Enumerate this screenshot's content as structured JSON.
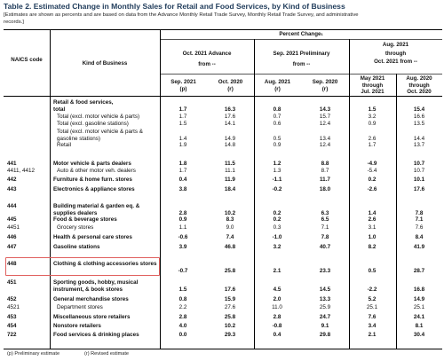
{
  "title": "Table 2.  Estimated Change in Monthly Sales for Retail and Food Services, by Kind of Business",
  "subtitle": "[Estimates are shown as percents and are based on data from the Advance Monthly Retail Trade Survey,  Monthly Retail Trade Survey, and administrative records.]",
  "header": {
    "naics": "NAICS code",
    "kind": "Kind of Business",
    "percent_change": "Percent Change",
    "percent_change_sup": "1",
    "group1": "Oct. 2021 Advance",
    "group1_from": "from --",
    "group2": "Sep. 2021 Preliminary",
    "group2_from": "from --",
    "group3_a": "Aug. 2021",
    "group3_b": "through",
    "group3_c": "Oct. 2021 from --",
    "cols": [
      {
        "l1": "Sep. 2021",
        "l2": "(p)"
      },
      {
        "l1": "Oct. 2020",
        "l2": "(r)"
      },
      {
        "l1": "Aug. 2021",
        "l2": "(r)"
      },
      {
        "l1": "Sep. 2020",
        "l2": "(r)"
      },
      {
        "l1": "May 2021",
        "l2": "through",
        "l3": "Jul. 2021"
      },
      {
        "l1": "Aug. 2020",
        "l2": "through",
        "l3": "Oct. 2020"
      }
    ]
  },
  "rows": [
    {
      "code": "",
      "kind": "Retail & food services,",
      "vals": [
        "",
        "",
        "",
        "",
        "",
        ""
      ]
    },
    {
      "code": "",
      "kind": "total",
      "vals": [
        "1.7",
        "16.3",
        "0.8",
        "14.3",
        "1.5",
        "15.4"
      ]
    },
    {
      "code": "",
      "kind": "Total (excl. motor vehicle & parts)",
      "vals": [
        "1.7",
        "17.6",
        "0.7",
        "15.7",
        "3.2",
        "16.6"
      ]
    },
    {
      "code": "",
      "kind": "Total (excl. gasoline stations)",
      "vals": [
        "1.5",
        "14.1",
        "0.6",
        "12.4",
        "0.9",
        "13.5"
      ]
    },
    {
      "code": "",
      "kind": "Total (excl. motor vehicle & parts & gasoline stations)",
      "vals": [
        "1.4",
        "14.9",
        "0.5",
        "13.4",
        "2.6",
        "14.4"
      ]
    },
    {
      "code": "",
      "kind": "Retail",
      "vals": [
        "1.9",
        "14.8",
        "0.9",
        "12.4",
        "1.7",
        "13.7"
      ]
    },
    {
      "code": "441",
      "kind": "Motor vehicle & parts dealers",
      "vals": [
        "1.8",
        "11.5",
        "1.2",
        "8.8",
        "-4.9",
        "10.7"
      ]
    },
    {
      "code": "4411, 4412",
      "kind": "Auto & other motor veh. dealers",
      "vals": [
        "1.7",
        "11.1",
        "1.3",
        "8.7",
        "-5.4",
        "10.7"
      ]
    },
    {
      "code": "442",
      "kind": "Furniture & home furn. stores",
      "vals": [
        "0.4",
        "11.9",
        "-1.1",
        "11.7",
        "0.2",
        "10.1"
      ]
    },
    {
      "code": "443",
      "kind": "Electronics & appliance stores",
      "vals": [
        "3.8",
        "18.4",
        "-0.2",
        "18.0",
        "-2.6",
        "17.6"
      ]
    },
    {
      "code": "444",
      "kind": "Building material & garden eq. & supplies dealers",
      "vals": [
        "2.8",
        "10.2",
        "0.2",
        "6.3",
        "1.4",
        "7.8"
      ]
    },
    {
      "code": "445",
      "kind": "Food & beverage stores",
      "vals": [
        "0.9",
        "8.3",
        "0.2",
        "6.5",
        "2.6",
        "7.1"
      ]
    },
    {
      "code": "4451",
      "kind": "Grocery stores",
      "vals": [
        "1.1",
        "9.0",
        "0.3",
        "7.1",
        "3.1",
        "7.6"
      ]
    },
    {
      "code": "446",
      "kind": "Health & personal care stores",
      "vals": [
        "-0.6",
        "7.4",
        "-1.0",
        "7.8",
        "1.0",
        "8.4"
      ]
    },
    {
      "code": "447",
      "kind": "Gasoline stations",
      "vals": [
        "3.9",
        "46.8",
        "3.2",
        "40.7",
        "8.2",
        "41.9"
      ]
    },
    {
      "code": "448",
      "kind": "Clothing & clothing accessories stores",
      "vals": [
        "-0.7",
        "25.8",
        "2.1",
        "23.3",
        "0.5",
        "28.7"
      ]
    },
    {
      "code": "451",
      "kind": "Sporting goods, hobby, musical instrument, & book stores",
      "vals": [
        "1.5",
        "17.6",
        "4.5",
        "14.5",
        "-2.2",
        "16.8"
      ]
    },
    {
      "code": "452",
      "kind": "General merchandise stores",
      "vals": [
        "0.8",
        "15.9",
        "2.0",
        "13.3",
        "5.2",
        "14.9"
      ]
    },
    {
      "code": "4521",
      "kind": "Department stores",
      "vals": [
        "2.2",
        "27.6",
        "11.0",
        "25.9",
        "25.1",
        "25.1"
      ]
    },
    {
      "code": "453",
      "kind": "Miscellaneous store retailers",
      "vals": [
        "2.8",
        "25.8",
        "2.8",
        "24.7",
        "7.6",
        "24.1"
      ]
    },
    {
      "code": "454",
      "kind": "Nonstore retailers",
      "vals": [
        "4.0",
        "10.2",
        "-0.8",
        "9.1",
        "3.4",
        "8.1"
      ]
    },
    {
      "code": "722",
      "kind": "Food services & drinking places",
      "vals": [
        "0.0",
        "29.3",
        "0.4",
        "29.8",
        "2.1",
        "30.4"
      ]
    }
  ],
  "footnote_p": "(p) Preliminary estimate",
  "footnote_r": "(r)  Revised estimate"
}
